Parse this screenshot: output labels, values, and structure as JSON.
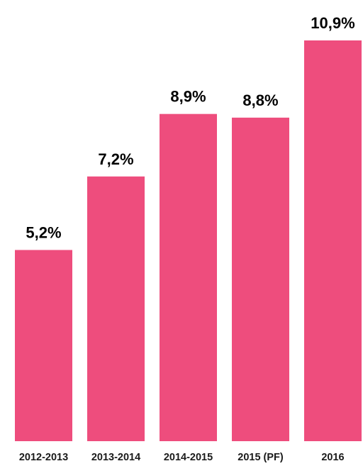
{
  "chart_data": {
    "type": "bar",
    "categories": [
      "2012-2013",
      "2013-2014",
      "2014-2015",
      "2015 (PF)",
      "2016"
    ],
    "values": [
      5.2,
      7.2,
      8.9,
      8.8,
      10.9
    ],
    "data_labels": [
      "5,2%",
      "7,2%",
      "8,9%",
      "8,8%",
      "10,9%"
    ],
    "title": "",
    "xlabel": "",
    "ylabel": "",
    "ylim": [
      0,
      10.9
    ],
    "grid": false,
    "legend": "none",
    "bar_color": "#ee4d7d"
  }
}
